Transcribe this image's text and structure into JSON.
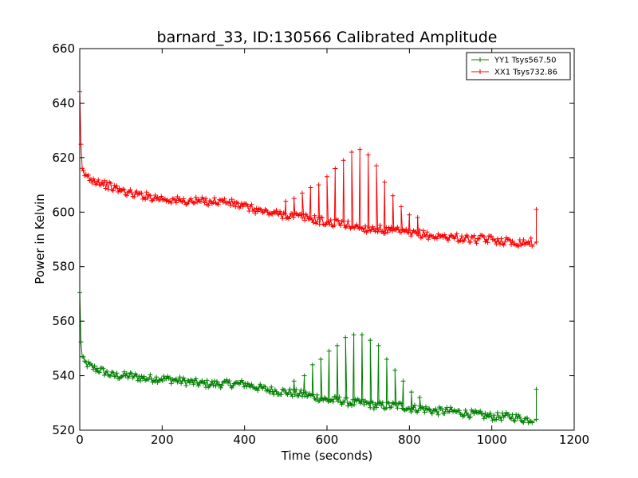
{
  "chart_data": {
    "type": "line",
    "title": "barnard_33, ID:130566 Calibrated Amplitude",
    "xlabel": "Time (seconds)",
    "ylabel": "Power in Kelvin",
    "xlim": [
      0,
      1200
    ],
    "ylim": [
      520,
      660
    ],
    "xticks": [
      0,
      200,
      400,
      600,
      800,
      1000,
      1200
    ],
    "yticks": [
      520,
      540,
      560,
      580,
      600,
      620,
      640,
      660
    ],
    "grid": false,
    "legend_position": "top-right",
    "marker": "plus",
    "series": [
      {
        "name": "YY1 Tsys567.50",
        "color": "#008000",
        "x": [
          0,
          2,
          5,
          10,
          20,
          30,
          50,
          80,
          120,
          160,
          200,
          250,
          300,
          350,
          400,
          450,
          500,
          550,
          580,
          600,
          630,
          660,
          690,
          720,
          750,
          780,
          800,
          830,
          860,
          900,
          950,
          1000,
          1050,
          1080,
          1100,
          1108
        ],
        "y": [
          570,
          556,
          547,
          545,
          544,
          543,
          542,
          540,
          540,
          539,
          539,
          538,
          537,
          537,
          537,
          535,
          534,
          533,
          532,
          531,
          531,
          530,
          530,
          529,
          529,
          529,
          528,
          528,
          527,
          527,
          526,
          525,
          525,
          524,
          524,
          535
        ],
        "peaks": [
          {
            "x": 520,
            "y": 538
          },
          {
            "x": 545,
            "y": 540
          },
          {
            "x": 565,
            "y": 544
          },
          {
            "x": 585,
            "y": 546
          },
          {
            "x": 605,
            "y": 549
          },
          {
            "x": 625,
            "y": 551
          },
          {
            "x": 645,
            "y": 554
          },
          {
            "x": 665,
            "y": 555
          },
          {
            "x": 685,
            "y": 555
          },
          {
            "x": 705,
            "y": 553
          },
          {
            "x": 725,
            "y": 551
          },
          {
            "x": 745,
            "y": 546
          },
          {
            "x": 765,
            "y": 542
          },
          {
            "x": 785,
            "y": 538
          },
          {
            "x": 805,
            "y": 534
          },
          {
            "x": 825,
            "y": 532
          }
        ]
      },
      {
        "name": "XX1 Tsys732.86",
        "color": "#ff0000",
        "x": [
          0,
          2,
          5,
          10,
          20,
          30,
          50,
          80,
          120,
          160,
          200,
          250,
          300,
          350,
          400,
          450,
          500,
          550,
          580,
          600,
          630,
          660,
          690,
          720,
          750,
          780,
          800,
          830,
          860,
          900,
          950,
          1000,
          1050,
          1080,
          1100,
          1108
        ],
        "y": [
          643,
          628,
          616,
          614,
          613,
          612,
          611,
          609,
          607,
          606,
          605,
          604,
          604,
          604,
          602,
          600,
          599,
          598,
          597,
          596,
          596,
          595,
          594,
          594,
          593,
          593,
          592,
          592,
          591,
          591,
          590,
          590,
          589,
          589,
          589,
          601
        ],
        "peaks": [
          {
            "x": 500,
            "y": 604
          },
          {
            "x": 520,
            "y": 605
          },
          {
            "x": 540,
            "y": 607
          },
          {
            "x": 560,
            "y": 609
          },
          {
            "x": 580,
            "y": 610
          },
          {
            "x": 600,
            "y": 613
          },
          {
            "x": 620,
            "y": 616
          },
          {
            "x": 640,
            "y": 619
          },
          {
            "x": 660,
            "y": 622
          },
          {
            "x": 680,
            "y": 623
          },
          {
            "x": 700,
            "y": 621
          },
          {
            "x": 720,
            "y": 617
          },
          {
            "x": 740,
            "y": 611
          },
          {
            "x": 760,
            "y": 606
          },
          {
            "x": 780,
            "y": 602
          },
          {
            "x": 800,
            "y": 599
          },
          {
            "x": 820,
            "y": 598
          }
        ]
      }
    ]
  }
}
